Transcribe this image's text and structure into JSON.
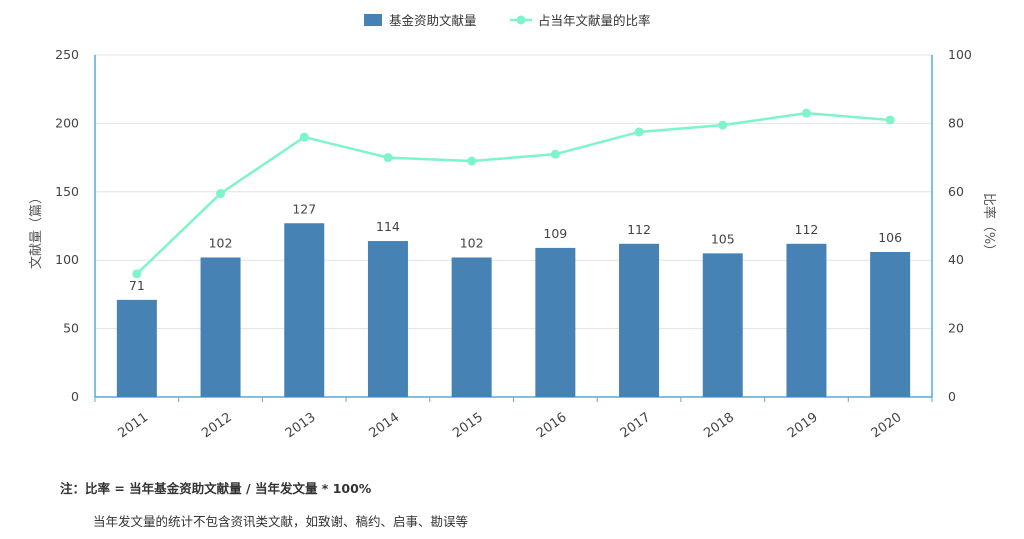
{
  "chart_data": {
    "type": "bar+line",
    "categories": [
      "2011",
      "2012",
      "2013",
      "2014",
      "2015",
      "2016",
      "2017",
      "2018",
      "2019",
      "2020"
    ],
    "series": [
      {
        "name": "基金资助文献量",
        "type": "bar",
        "axis": "left",
        "color": "#4682b4",
        "values": [
          71,
          102,
          127,
          114,
          102,
          109,
          112,
          105,
          112,
          106
        ]
      },
      {
        "name": "占当年文献量的比率",
        "type": "line",
        "axis": "right",
        "color": "#7df5c8",
        "values": [
          36,
          59.5,
          76,
          70,
          69,
          71,
          77.5,
          79.5,
          83,
          81
        ]
      }
    ],
    "ylabel": "文献量（篇）",
    "ylim": [
      0,
      250
    ],
    "yticks": [
      0,
      50,
      100,
      150,
      200,
      250
    ],
    "y2label": "比率（%）",
    "y2lim": [
      0,
      100
    ],
    "y2ticks": [
      0,
      20,
      40,
      60,
      80,
      100
    ],
    "legend": "top-center",
    "grid": true
  },
  "notes": {
    "line1": "注：比率 = 当年基金资助文献量 / 当年发文量 * 100%",
    "line2": "当年发文量的统计不包含资讯类文献，如致谢、稿约、启事、勘误等"
  }
}
